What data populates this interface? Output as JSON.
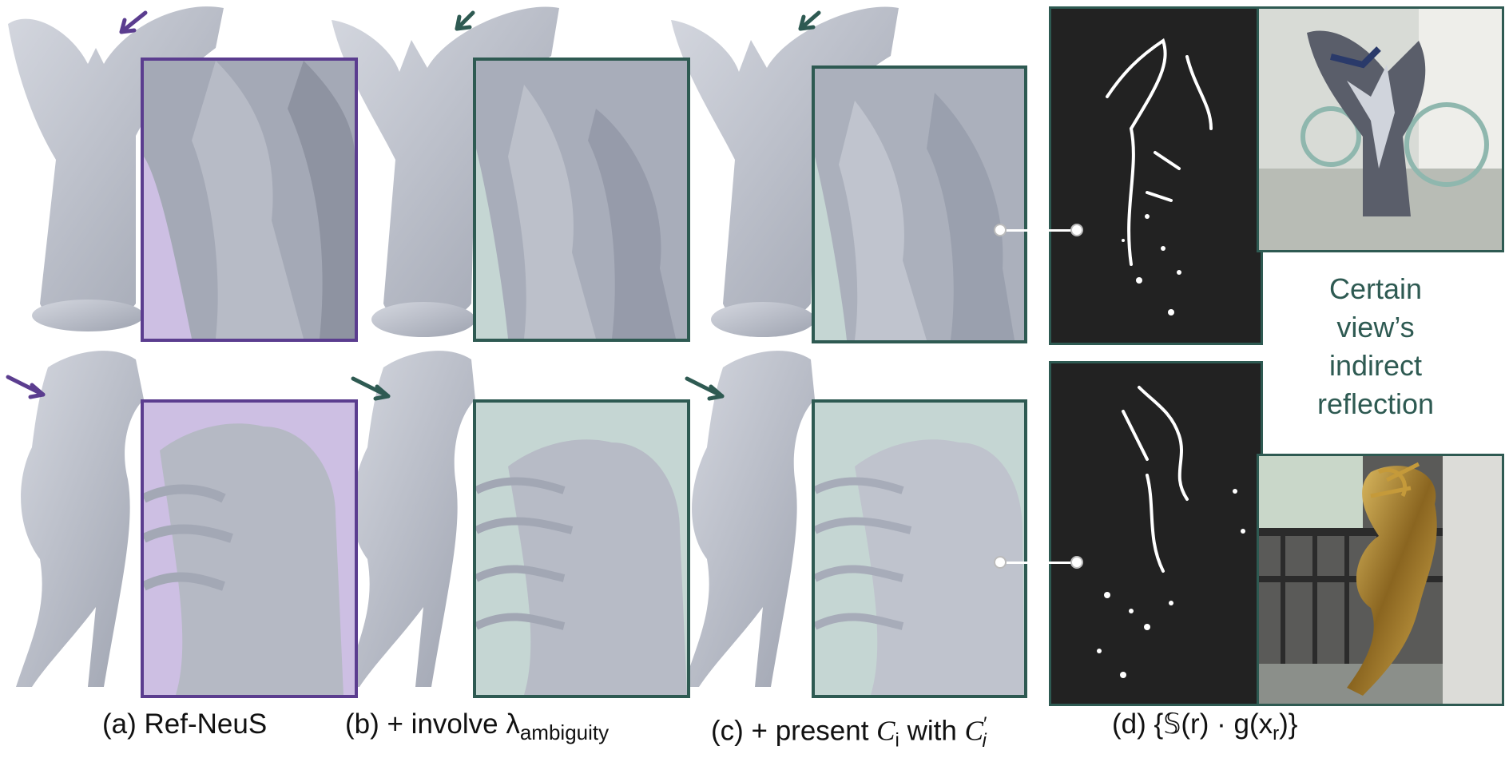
{
  "colors": {
    "purple": "#5b3d8f",
    "purple_bg": "#cdbfe3",
    "teal": "#2e5a52",
    "teal_bg": "#c5d6d3",
    "statue": "#c3c7d1",
    "statue_shadow": "#9ea3b0"
  },
  "columns": [
    {
      "caption": "(a) Ref-NeuS",
      "frame_color": "purple"
    },
    {
      "caption": "(b) + involve λ",
      "caption_sub": "ambiguity",
      "frame_color": "teal"
    },
    {
      "caption": "(c) + present ",
      "caption_math": "C",
      "caption_math_sub": "i",
      "caption_mid": " with ",
      "caption_math2": "C",
      "caption_math2_sub": "i",
      "caption_math2_sup": "′",
      "frame_color": "teal"
    },
    {
      "caption": "(d) {𝕊(r) · g(x",
      "caption_sub": "r",
      "caption_end": ")}",
      "frame_color": "teal"
    }
  ],
  "side_text": [
    "Certain",
    "view’s",
    "indirect",
    "reflection"
  ],
  "icons": [
    "arrow-icon",
    "connector-dot-icon"
  ]
}
